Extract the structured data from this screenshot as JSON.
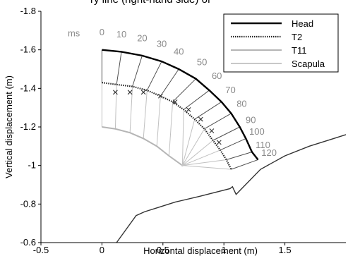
{
  "caption_fragment": "ry line (right-hand side) of",
  "chart_data": {
    "type": "line",
    "title": "",
    "xlabel": "Horizontal displacement (m)",
    "ylabel": "Vertical displacement (m)",
    "xlim": [
      -0.5,
      2.0
    ],
    "ylim": [
      -1.8,
      -0.6
    ],
    "y_axis_inverted": true,
    "x_ticks": [
      "-0.5",
      "0",
      "0.5",
      "1",
      "1.5"
    ],
    "y_ticks": [
      "-1.8",
      "-1.6",
      "-1.4",
      "-1.2",
      "-1",
      "-0.8",
      "-0.6"
    ],
    "legend_position": "top-right",
    "time_unit_label": "ms",
    "time_labels": [
      "0",
      "10",
      "20",
      "30",
      "40",
      "50",
      "60",
      "70",
      "80",
      "90",
      "100",
      "110",
      "120"
    ],
    "series": [
      {
        "name": "Head",
        "color": "#000000",
        "style": "solid-thick",
        "x": [
          0.0,
          0.16,
          0.33,
          0.49,
          0.63,
          0.77,
          0.88,
          0.98,
          1.06,
          1.13,
          1.18,
          1.23,
          1.28
        ],
        "y": [
          -1.6,
          -1.59,
          -1.57,
          -1.54,
          -1.5,
          -1.45,
          -1.39,
          -1.33,
          -1.27,
          -1.2,
          -1.14,
          -1.07,
          -1.03
        ]
      },
      {
        "name": "T2",
        "color": "#222222",
        "style": "dotted-with-x-markers",
        "x": [
          0.0,
          0.12,
          0.25,
          0.37,
          0.48,
          0.58,
          0.67,
          0.76,
          0.84,
          0.91,
          0.97,
          1.02,
          1.06
        ],
        "y": [
          -1.43,
          -1.42,
          -1.41,
          -1.39,
          -1.36,
          -1.33,
          -1.29,
          -1.24,
          -1.19,
          -1.13,
          -1.08,
          -1.03,
          -0.98
        ]
      },
      {
        "name": "T11",
        "color": "#b5b5b5",
        "style": "solid-thin",
        "x": [
          0.0,
          0.11,
          0.23,
          0.34,
          0.45,
          0.55,
          0.66
        ],
        "y": [
          -1.2,
          -1.19,
          -1.17,
          -1.14,
          -1.1,
          -1.05,
          -1.0
        ]
      },
      {
        "name": "Scapula",
        "color": "#c8c8c8",
        "style": "solid-thin",
        "x": [
          0.66,
          0.66,
          0.66,
          0.66,
          0.66,
          0.66,
          0.66
        ],
        "y": [
          -1.0,
          -1.0,
          -1.0,
          -1.0,
          -1.0,
          -1.0,
          -1.0
        ]
      }
    ],
    "x_markers": {
      "x": [
        0.11,
        0.23,
        0.34,
        0.48,
        0.6,
        0.71,
        0.81,
        0.9,
        0.96
      ],
      "y": [
        -1.38,
        -1.38,
        -1.38,
        -1.36,
        -1.33,
        -1.29,
        -1.24,
        -1.18,
        -1.12
      ]
    },
    "ground_line": {
      "color": "#333333",
      "x": [
        0.12,
        0.2,
        0.28,
        0.35,
        0.45,
        0.6,
        0.8,
        1.05,
        1.07,
        1.1,
        1.3,
        1.5,
        1.7,
        1.9,
        2.0
      ],
      "y": [
        -0.6,
        -0.67,
        -0.74,
        -0.76,
        -0.78,
        -0.81,
        -0.84,
        -0.88,
        -0.89,
        -0.85,
        -0.98,
        -1.05,
        -1.1,
        -1.14,
        -1.16
      ]
    }
  }
}
